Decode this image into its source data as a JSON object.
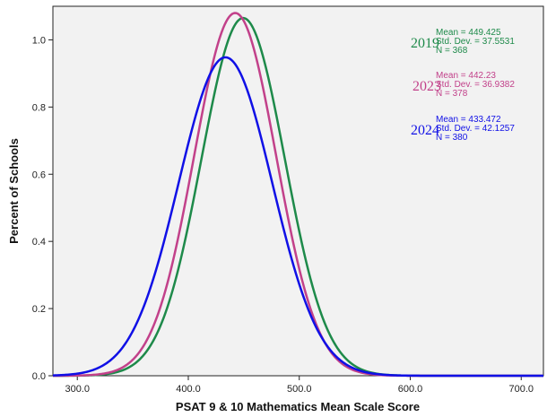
{
  "chart_data": {
    "type": "line",
    "title": "",
    "xlabel": "PSAT 9 & 10 Mathematics Mean Scale Score",
    "ylabel": "Percent of Schools",
    "xlim": [
      278,
      720
    ],
    "ylim": [
      0,
      1.1
    ],
    "x_ticks": [
      {
        "value": 300,
        "label": "300.0"
      },
      {
        "value": 400,
        "label": "400.0"
      },
      {
        "value": 500,
        "label": "500.0"
      },
      {
        "value": 600,
        "label": "600.0"
      },
      {
        "value": 700,
        "label": "700.0"
      }
    ],
    "y_ticks": [
      {
        "value": 0,
        "label": "0.0"
      },
      {
        "value": 0.2,
        "label": "0.2"
      },
      {
        "value": 0.4,
        "label": "0.4"
      },
      {
        "value": 0.6,
        "label": "0.6"
      },
      {
        "value": 0.8,
        "label": "0.8"
      },
      {
        "value": 1.0,
        "label": "1.0"
      }
    ],
    "grid": false,
    "series": [
      {
        "name": "2019",
        "color": "#1e8a4a",
        "mean": 449.425,
        "peak": 1.065,
        "std_dev": 37.5531,
        "stats": [
          "Mean = 449.425",
          "Std. Dev. = 37.5531",
          "N = 368"
        ]
      },
      {
        "name": "2023",
        "color": "#c2418a",
        "mean": 442.23,
        "peak": 1.08,
        "std_dev": 36.9382,
        "stats": [
          "Mean = 442.23",
          "Std. Dev. = 36.9382",
          "N = 378"
        ]
      },
      {
        "name": "2024",
        "color": "#1010e6",
        "mean": 433.472,
        "peak": 0.948,
        "std_dev": 42.1257,
        "stats": [
          "Mean = 433.472",
          "Std. Dev. = 42.1257",
          "N = 380"
        ]
      }
    ],
    "legend_position": "top-right"
  }
}
